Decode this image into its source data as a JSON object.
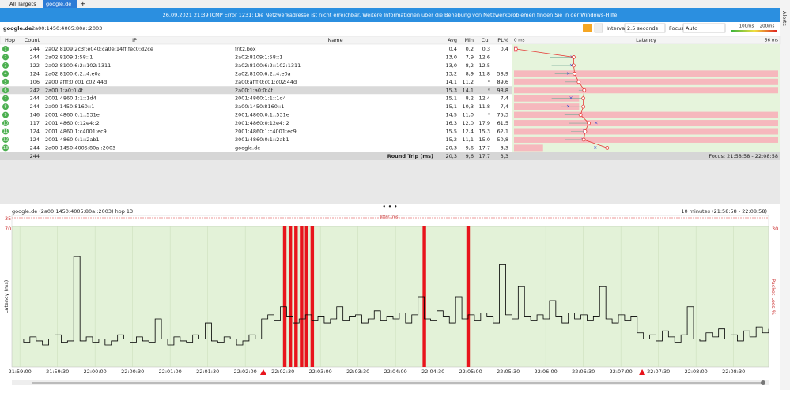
{
  "tabs": [
    "All Targets",
    "google.de"
  ],
  "banner": "26.09.2021 21:39 ICMP Error 1231: Die Netzwerkadresse ist nicht erreichbar. Weitere Informationen über die Behebung von Netzwerkproblemen finden Sie in der Windows-Hilfe",
  "alerts_label": "Alerts",
  "toolbar": {
    "target": "google.de",
    "address": "2a00:1450:4005:80a::2003",
    "interval_label": "Interval",
    "interval": "2.5 seconds",
    "focus_label": "Focus",
    "focus": "Auto",
    "scale_labels": [
      "100ms",
      "200ms"
    ]
  },
  "table": {
    "columns": [
      "Hop",
      "Count",
      "IP",
      "Name",
      "Avg",
      "Min",
      "Cur",
      "PL%"
    ],
    "latency_header": "Latency",
    "latency_min": {
      "value": 0,
      "label": "0 ms"
    },
    "latency_max": {
      "value": 56,
      "label": "56 ms"
    },
    "rows": [
      [
        "1",
        "244",
        "2a02:8109:2c3f:e040:ca0e:14ff:fec0:d2ce",
        "fritz.box",
        "0,4",
        "0,2",
        "0,3",
        "0,4"
      ],
      [
        "2",
        "244",
        "2a02:8109:1:58::1",
        "2a02:8109:1:58::1",
        "13,0",
        "7,9",
        "12,6",
        null
      ],
      [
        "3",
        "122",
        "2a02:8100:6:2::102:1311",
        "2a02:8100:6:2::102:1311",
        "13,0",
        "8,2",
        "12,5",
        null
      ],
      [
        "4",
        "124",
        "2a02:8100:6:2::4:e0a",
        "2a02:8100:6:2::4:e0a",
        "13,2",
        "8,9",
        "11,8",
        "58,9"
      ],
      [
        "5",
        "106",
        "2a00:afff:0:c01:c02:44d",
        "2a00:afff:0:c01:c02:44d",
        "14,1",
        "11,2",
        "*",
        "89,6"
      ],
      [
        "6",
        "242",
        "2a00:1:a0:0:4f",
        "2a00:1:a0:0:4f",
        "15,3",
        "14,1",
        "*",
        "98,8"
      ],
      [
        "7",
        "244",
        "2001:4860:1:1::1d4",
        "2001:4860:1:1::1d4",
        "15,1",
        "8,2",
        "12,4",
        "7,4"
      ],
      [
        "8",
        "244",
        "2a00:1450:8160::1",
        "2a00:1450:8160::1",
        "15,1",
        "10,3",
        "11,8",
        "7,4"
      ],
      [
        "9",
        "146",
        "2001:4860:0:1::531e",
        "2001:4860:0:1::531e",
        "14,5",
        "11,0",
        "*",
        "75,3"
      ],
      [
        "10",
        "117",
        "2001:4860:0:12e4::2",
        "2001:4860:0:12e4::2",
        "16,3",
        "12,0",
        "17,9",
        "61,5"
      ],
      [
        "11",
        "124",
        "2001:4860:1:c4001:ec9",
        "2001:4860:1:c4001:ec9",
        "15,5",
        "12,4",
        "15,3",
        "62,1"
      ],
      [
        "12",
        "124",
        "2001:4860:0:1::2ab1",
        "2001:4860:0:1::2ab1",
        "15,2",
        "11,1",
        "15,0",
        "50,8"
      ],
      [
        "13",
        "244",
        "2a00:1450:4005:80a::2003",
        "google.de",
        "20,3",
        "9,6",
        "17,7",
        "3,3"
      ]
    ],
    "summary": {
      "count": "244",
      "label": "Round Trip (ms)",
      "avg": "20,3",
      "min": "9,6",
      "cur": "17,7",
      "pl": "3,3",
      "focus": "Focus: 21:58:58 - 22:08:58"
    }
  },
  "chart_data": {
    "type": "line",
    "title": "google.de (2a00:1450:4005:80a::2003) hop 13",
    "time_range": "10 minutes (21:58:58 - 22:08:58)",
    "jitter_label": "Jitter (ms)",
    "jitter_max": 35,
    "y_label": "Latency (ms)",
    "y2_label": "Packet Loss %",
    "xlim": [
      0,
      600
    ],
    "xticks": [
      {
        "value": 2,
        "label": "21:59:00"
      },
      {
        "value": 32,
        "label": "21:59:30"
      },
      {
        "value": 62,
        "label": "22:00:00"
      },
      {
        "value": 92,
        "label": "22:00:30"
      },
      {
        "value": 122,
        "label": "22:01:00"
      },
      {
        "value": 152,
        "label": "22:01:30"
      },
      {
        "value": 182,
        "label": "22:02:00"
      },
      {
        "value": 212,
        "label": "22:02:30"
      },
      {
        "value": 242,
        "label": "22:03:00"
      },
      {
        "value": 272,
        "label": "22:03:30"
      },
      {
        "value": 302,
        "label": "22:04:00"
      },
      {
        "value": 332,
        "label": "22:04:30"
      },
      {
        "value": 362,
        "label": "22:05:00"
      },
      {
        "value": 392,
        "label": "22:05:30"
      },
      {
        "value": 422,
        "label": "22:06:00"
      },
      {
        "value": 452,
        "label": "22:06:30"
      },
      {
        "value": 482,
        "label": "22:07:00"
      },
      {
        "value": 512,
        "label": "22:07:30"
      },
      {
        "value": 542,
        "label": "22:08:00"
      },
      {
        "value": 572,
        "label": "22:08:30"
      }
    ],
    "ylim": [
      0,
      70
    ],
    "yticks": [
      70
    ],
    "y2lim": [
      0,
      30
    ],
    "y2ticks": [
      30
    ],
    "x": [
      0,
      5,
      10,
      15,
      20,
      25,
      30,
      35,
      40,
      45,
      50,
      55,
      60,
      65,
      70,
      75,
      80,
      85,
      90,
      95,
      100,
      105,
      110,
      115,
      120,
      125,
      130,
      135,
      140,
      145,
      150,
      155,
      160,
      165,
      170,
      175,
      180,
      185,
      190,
      195,
      200,
      205,
      210,
      215,
      220,
      225,
      230,
      235,
      240,
      245,
      250,
      255,
      260,
      265,
      270,
      275,
      280,
      285,
      290,
      295,
      300,
      305,
      310,
      315,
      320,
      325,
      330,
      335,
      340,
      345,
      350,
      355,
      360,
      365,
      370,
      375,
      380,
      385,
      390,
      395,
      400,
      405,
      410,
      415,
      420,
      425,
      430,
      435,
      440,
      445,
      450,
      455,
      460,
      465,
      470,
      475,
      480,
      485,
      490,
      495,
      500,
      505,
      510,
      515,
      520,
      525,
      530,
      535,
      540,
      545,
      550,
      555,
      560,
      565,
      570,
      575,
      580,
      585,
      590,
      595,
      600
    ],
    "series": [
      {
        "color": "#000000",
        "values": [
          14,
          12,
          15,
          13,
          11,
          14,
          16,
          12,
          13,
          55,
          13,
          15,
          12,
          14,
          11,
          13,
          16,
          14,
          12,
          15,
          13,
          12,
          24,
          14,
          11,
          15,
          13,
          12,
          16,
          14,
          22,
          13,
          12,
          15,
          14,
          11,
          13,
          16,
          14,
          24,
          26,
          23,
          30,
          25,
          22,
          24,
          26,
          23,
          25,
          22,
          24,
          30,
          23,
          25,
          26,
          22,
          24,
          28,
          23,
          25,
          24,
          27,
          22,
          26,
          35,
          24,
          23,
          28,
          25,
          22,
          35,
          24,
          26,
          23,
          27,
          25,
          22,
          51,
          26,
          24,
          40,
          25,
          23,
          26,
          24,
          33,
          25,
          22,
          27,
          24,
          26,
          23,
          25,
          40,
          24,
          22,
          26,
          23,
          25,
          17,
          14,
          16,
          13,
          18,
          15,
          12,
          16,
          30,
          14,
          13,
          17,
          15,
          19,
          14,
          16,
          13,
          18,
          15,
          20,
          17,
          19
        ]
      }
    ],
    "packet_loss_x": [
      213.5,
      218,
      222.5,
      227,
      231,
      235.5,
      325,
      360
    ],
    "alert_x": [
      196.4,
      499
    ]
  }
}
